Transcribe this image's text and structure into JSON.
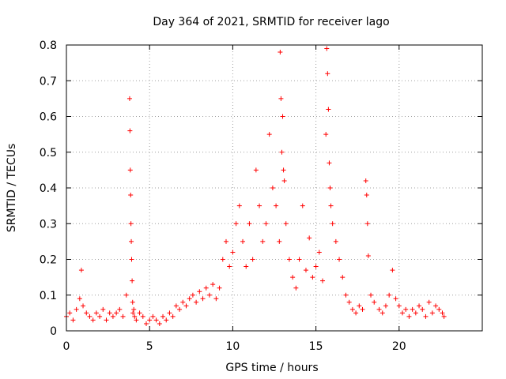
{
  "chart_data": {
    "type": "scatter",
    "title": "Day 364 of 2021, SRMTID for receiver lago",
    "xlabel": "GPS time / hours",
    "ylabel": "SRMTID / TECUs",
    "xlim": [
      0,
      25
    ],
    "ylim": [
      0,
      0.8
    ],
    "xticks": [
      0,
      5,
      10,
      15,
      20
    ],
    "xtick_labels": [
      "0",
      "5",
      "10",
      "15",
      "20"
    ],
    "yticks": [
      0,
      0.1,
      0.2,
      0.3,
      0.4,
      0.5,
      0.6,
      0.7,
      0.8
    ],
    "ytick_labels": [
      "0",
      "0.1",
      "0.2",
      "0.3",
      "0.4",
      "0.5",
      "0.6",
      "0.7",
      "0.8"
    ],
    "grid": true,
    "marker": "+",
    "color": "#ff0000",
    "series": [
      {
        "name": "lago",
        "x": [
          0.0,
          0.2,
          0.4,
          0.6,
          0.8,
          0.9,
          1.0,
          1.2,
          1.4,
          1.6,
          1.8,
          2.0,
          2.2,
          2.4,
          2.6,
          2.8,
          3.0,
          3.2,
          3.4,
          3.6,
          3.8,
          3.82,
          3.84,
          3.86,
          3.88,
          3.9,
          3.92,
          3.95,
          3.98,
          4.0,
          4.05,
          4.1,
          4.2,
          4.4,
          4.6,
          4.8,
          5.0,
          5.2,
          5.4,
          5.6,
          5.8,
          6.0,
          6.2,
          6.4,
          6.6,
          6.8,
          7.0,
          7.2,
          7.4,
          7.6,
          7.8,
          8.0,
          8.2,
          8.4,
          8.6,
          8.8,
          9.0,
          9.2,
          9.4,
          9.6,
          9.8,
          10.0,
          10.2,
          10.4,
          10.6,
          10.8,
          11.0,
          11.2,
          11.4,
          11.6,
          11.8,
          12.0,
          12.2,
          12.4,
          12.6,
          12.8,
          12.85,
          12.9,
          12.95,
          13.0,
          13.05,
          13.1,
          13.2,
          13.4,
          13.6,
          13.8,
          14.0,
          14.2,
          14.4,
          14.6,
          14.8,
          15.0,
          15.2,
          15.4,
          15.6,
          15.65,
          15.7,
          15.75,
          15.8,
          15.85,
          15.9,
          16.0,
          16.2,
          16.4,
          16.6,
          16.8,
          17.0,
          17.2,
          17.4,
          17.6,
          17.8,
          18.0,
          18.05,
          18.1,
          18.15,
          18.3,
          18.5,
          18.8,
          19.0,
          19.2,
          19.4,
          19.6,
          19.8,
          20.0,
          20.2,
          20.4,
          20.6,
          20.8,
          21.0,
          21.2,
          21.4,
          21.6,
          21.8,
          22.0,
          22.2,
          22.4,
          22.6,
          22.7
        ],
        "y": [
          0.04,
          0.05,
          0.03,
          0.06,
          0.09,
          0.17,
          0.07,
          0.05,
          0.04,
          0.03,
          0.05,
          0.04,
          0.06,
          0.03,
          0.05,
          0.04,
          0.05,
          0.06,
          0.04,
          0.1,
          0.65,
          0.56,
          0.45,
          0.38,
          0.3,
          0.25,
          0.2,
          0.14,
          0.08,
          0.05,
          0.06,
          0.04,
          0.03,
          0.05,
          0.04,
          0.02,
          0.03,
          0.04,
          0.03,
          0.02,
          0.04,
          0.03,
          0.05,
          0.04,
          0.07,
          0.06,
          0.08,
          0.07,
          0.09,
          0.1,
          0.08,
          0.11,
          0.09,
          0.12,
          0.1,
          0.13,
          0.09,
          0.12,
          0.2,
          0.25,
          0.18,
          0.22,
          0.3,
          0.35,
          0.25,
          0.18,
          0.3,
          0.2,
          0.45,
          0.35,
          0.25,
          0.3,
          0.55,
          0.4,
          0.35,
          0.25,
          0.78,
          0.65,
          0.5,
          0.6,
          0.45,
          0.42,
          0.3,
          0.2,
          0.15,
          0.12,
          0.2,
          0.35,
          0.17,
          0.26,
          0.15,
          0.18,
          0.22,
          0.14,
          0.55,
          0.79,
          0.72,
          0.62,
          0.47,
          0.4,
          0.35,
          0.3,
          0.25,
          0.2,
          0.15,
          0.1,
          0.08,
          0.06,
          0.05,
          0.07,
          0.06,
          0.42,
          0.38,
          0.3,
          0.21,
          0.1,
          0.08,
          0.06,
          0.05,
          0.07,
          0.1,
          0.17,
          0.09,
          0.07,
          0.05,
          0.06,
          0.04,
          0.06,
          0.05,
          0.07,
          0.06,
          0.04,
          0.08,
          0.05,
          0.07,
          0.06,
          0.05,
          0.04
        ]
      }
    ]
  }
}
